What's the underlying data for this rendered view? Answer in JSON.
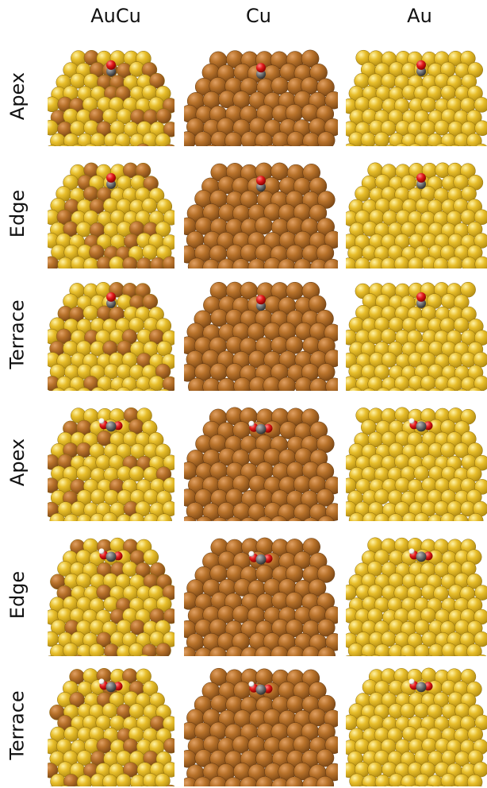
{
  "columns": [
    "AuCu",
    "Cu",
    "Au"
  ],
  "rows": [
    {
      "label": "Apex",
      "adsorbate": "CO"
    },
    {
      "label": "Edge",
      "adsorbate": "CO"
    },
    {
      "label": "Terrace",
      "adsorbate": "CO"
    },
    {
      "label": "Apex",
      "adsorbate": "COOH"
    },
    {
      "label": "Edge",
      "adsorbate": "COOH"
    },
    {
      "label": "Terrace",
      "adsorbate": "COOH"
    }
  ],
  "colors": {
    "gold": "#e8be2a",
    "gold_dark": "#b58f14",
    "copper": "#b8722a",
    "copper_dark": "#7f4a17",
    "carbon": "#6e6e6e",
    "oxygen": "#e01a1a",
    "hydrogen": "#f2f2f2"
  }
}
